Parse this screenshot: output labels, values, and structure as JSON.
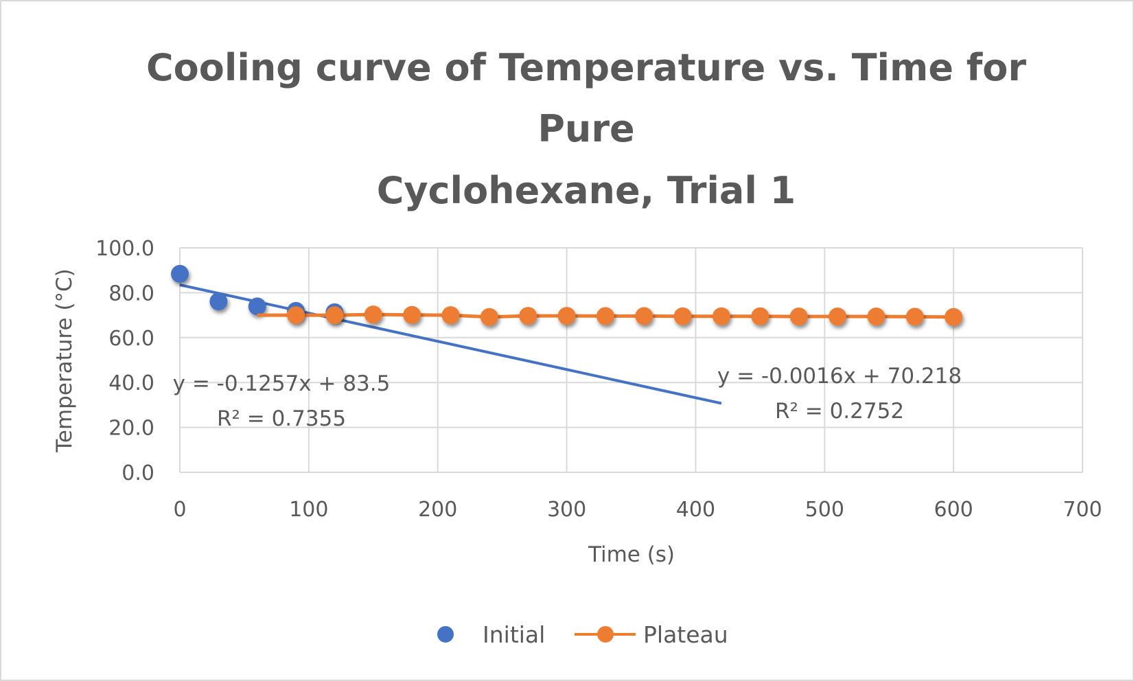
{
  "chart_data": {
    "type": "scatter",
    "title_lines": [
      "Cooling curve of Temperature vs. Time for",
      "Pure",
      "Cyclohexane, Trial 1"
    ],
    "xlabel": "Time (s)",
    "ylabel": "Temperature (°C)",
    "xlim": [
      0,
      700
    ],
    "ylim": [
      0,
      100
    ],
    "x_ticks": [
      "0",
      "100",
      "200",
      "300",
      "400",
      "500",
      "600",
      "700"
    ],
    "y_ticks": [
      "0.0",
      "20.0",
      "40.0",
      "60.0",
      "80.0",
      "100.0"
    ],
    "grid": true,
    "legend_position": "bottom",
    "series": [
      {
        "name": "Initial",
        "color": "#4472C4",
        "line": false,
        "x": [
          0,
          30,
          60,
          90,
          120
        ],
        "y": [
          88.4,
          76.1,
          73.9,
          71.9,
          71.3
        ],
        "trendline": {
          "slope": -0.1257,
          "intercept": 83.5,
          "x_range": [
            0,
            420
          ],
          "equation": "y = -0.1257x + 83.5",
          "r2": "R² = 0.7355"
        }
      },
      {
        "name": "Plateau",
        "color": "#ED7D31",
        "line": true,
        "x": [
          60,
          90,
          120,
          150,
          180,
          210,
          240,
          270,
          300,
          330,
          360,
          390,
          420,
          450,
          480,
          510,
          540,
          570,
          600
        ],
        "y": [
          70.0,
          70.0,
          70.0,
          70.3,
          70.1,
          70.0,
          69.2,
          69.7,
          69.7,
          69.6,
          69.6,
          69.5,
          69.5,
          69.5,
          69.4,
          69.4,
          69.4,
          69.3,
          69.2
        ],
        "trendline": {
          "equation": "y = -0.0016x + 70.218",
          "r2": "R² = 0.2752"
        }
      }
    ]
  }
}
